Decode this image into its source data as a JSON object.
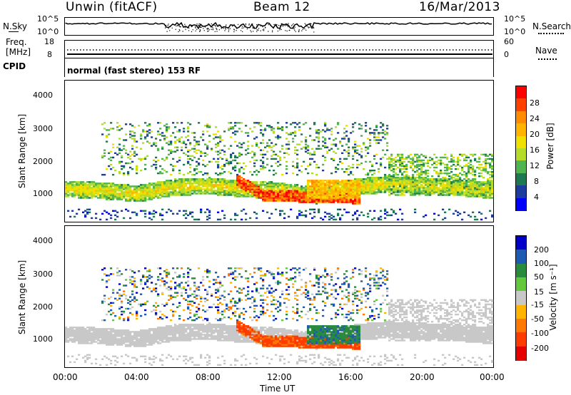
{
  "header": {
    "station": "Unwin (fitACF)",
    "beam": "Beam 12",
    "date": "16/Mar/2013"
  },
  "noise_panel": {
    "left_label": "N.Sky",
    "left_ticks": [
      "10^5",
      "10^0"
    ],
    "right_ticks": [
      "10^5",
      "10^0"
    ],
    "right_label": "N.Search",
    "right_label_style": "dotted"
  },
  "freq_panel": {
    "left_label_1": "Freq.",
    "left_label_2": "[MHz]",
    "left_ticks": [
      "18",
      "8"
    ],
    "right_ticks": [
      "60",
      "0"
    ],
    "right_label": "Nave",
    "right_label_style": "dotted"
  },
  "cpid_panel": {
    "label": "CPID",
    "value": "normal (fast stereo) 153 RF"
  },
  "power_panel": {
    "ylabel": "Slant Range [km]",
    "yticks": [
      "4000",
      "3000",
      "2000",
      "1000"
    ],
    "colorbar_label": "Power [dB]",
    "colorbar_ticks": [
      "28",
      "24",
      "20",
      "16",
      "12",
      "8",
      "4"
    ],
    "colorbar_colors": [
      "#ff0000",
      "#ff4000",
      "#ff8c00",
      "#ffb400",
      "#f0e000",
      "#b4dc28",
      "#50b450",
      "#1e7850",
      "#1e3ca0",
      "#0000ff"
    ]
  },
  "velocity_panel": {
    "ylabel": "Slant Range [km]",
    "yticks": [
      "4000",
      "3000",
      "2000",
      "1000"
    ],
    "colorbar_label": "Velocity [m s⁻¹]",
    "colorbar_ticks": [
      "200",
      "100",
      "50",
      "15",
      "-15",
      "-50",
      "-100",
      "-200"
    ],
    "colorbar_colors": [
      "#0000c8",
      "#1e5ab4",
      "#288c3c",
      "#64c83c",
      "#c8c8c8",
      "#ffb400",
      "#ff7800",
      "#ff3c00",
      "#e60000"
    ]
  },
  "xaxis": {
    "label": "Time UT",
    "ticks": [
      "00:00",
      "04:00",
      "08:00",
      "12:00",
      "16:00",
      "20:00",
      "00:00"
    ]
  },
  "chart_data": {
    "type": "heatmap",
    "x_range_hours": [
      0,
      24
    ],
    "y_range_km": [
      200,
      4600
    ],
    "power_range_db": [
      0,
      30
    ],
    "velocity_range_ms": [
      -250,
      250
    ],
    "echo_bands": [
      {
        "name": "main_band",
        "t_start": 0,
        "t_end": 24,
        "range_center_km": [
          1200,
          1150,
          1050,
          1250,
          1300,
          1200,
          1150,
          1000,
          1250,
          1350,
          1300,
          1250,
          1150
        ],
        "width_km": 400
      },
      {
        "name": "strong_echo",
        "t_start": 9.5,
        "t_end": 16.5,
        "range_center_km": [
          1500,
          1050,
          950,
          900,
          900
        ],
        "power_db": 28
      }
    ]
  }
}
